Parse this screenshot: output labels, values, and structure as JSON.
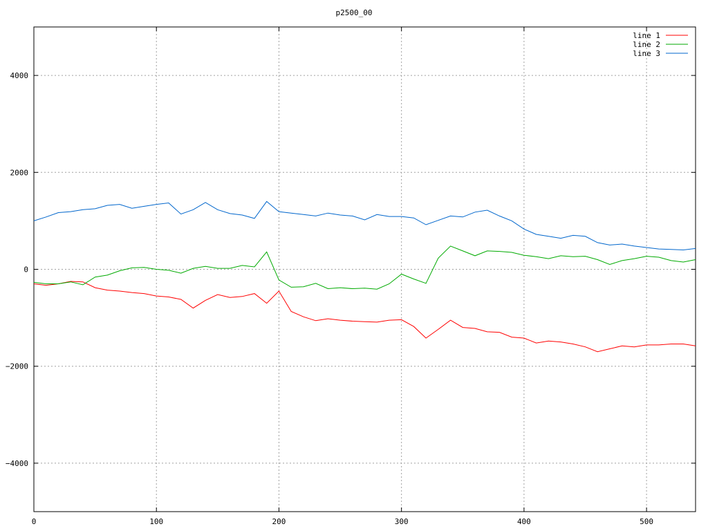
{
  "chart_data": {
    "type": "line",
    "title": "p2500_00",
    "xlabel": "",
    "ylabel": "",
    "xlim": [
      0,
      540
    ],
    "ylim": [
      -5000,
      5000
    ],
    "x_ticks": [
      0,
      100,
      200,
      300,
      400,
      500
    ],
    "y_ticks": [
      -4000,
      -2000,
      0,
      2000,
      4000
    ],
    "x_tick_labels": [
      "0",
      "100",
      "200",
      "300",
      "400",
      "500"
    ],
    "y_tick_labels": [
      "−4000",
      "−2000",
      "0",
      "2000",
      "4000"
    ],
    "grid": true,
    "legend_position": "top-right",
    "x_step": 10,
    "series": [
      {
        "name": "line 1",
        "color": "#ff0000",
        "values": [
          -300,
          -330,
          -300,
          -250,
          -260,
          -380,
          -430,
          -450,
          -480,
          -500,
          -550,
          -570,
          -620,
          -800,
          -640,
          -520,
          -580,
          -560,
          -500,
          -700,
          -450,
          -870,
          -980,
          -1060,
          -1020,
          -1050,
          -1070,
          -1080,
          -1090,
          -1050,
          -1040,
          -1180,
          -1420,
          -1240,
          -1050,
          -1200,
          -1220,
          -1290,
          -1300,
          -1400,
          -1420,
          -1520,
          -1480,
          -1500,
          -1540,
          -1600,
          -1700,
          -1640,
          -1580,
          -1600,
          -1560,
          -1560,
          -1540,
          -1540,
          -1580
        ]
      },
      {
        "name": "line 2",
        "color": "#00aa00",
        "values": [
          -270,
          -300,
          -300,
          -260,
          -320,
          -160,
          -120,
          -30,
          30,
          40,
          0,
          -20,
          -80,
          20,
          60,
          20,
          20,
          80,
          50,
          360,
          -220,
          -370,
          -360,
          -290,
          -400,
          -380,
          -400,
          -390,
          -410,
          -300,
          -100,
          -200,
          -290,
          230,
          480,
          380,
          280,
          380,
          370,
          350,
          290,
          260,
          220,
          280,
          260,
          270,
          200,
          100,
          180,
          220,
          270,
          250,
          180,
          150,
          200
        ]
      },
      {
        "name": "line 3",
        "color": "#0066cc",
        "values": [
          1000,
          1080,
          1170,
          1190,
          1230,
          1250,
          1320,
          1340,
          1260,
          1300,
          1340,
          1370,
          1140,
          1230,
          1380,
          1230,
          1150,
          1120,
          1050,
          1400,
          1190,
          1160,
          1130,
          1100,
          1160,
          1120,
          1100,
          1020,
          1130,
          1090,
          1090,
          1060,
          920,
          1010,
          1100,
          1080,
          1180,
          1220,
          1100,
          1000,
          830,
          720,
          680,
          640,
          700,
          680,
          550,
          500,
          520,
          480,
          450,
          420,
          410,
          400,
          430
        ]
      }
    ]
  }
}
